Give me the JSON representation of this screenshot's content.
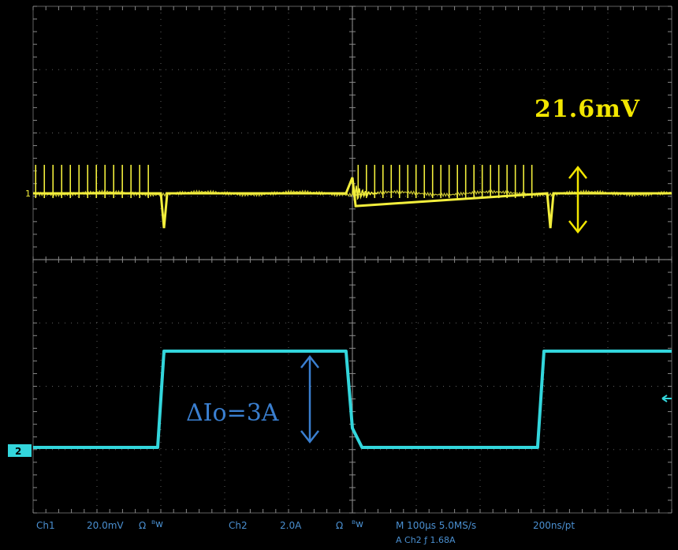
{
  "colors": {
    "background": "#000000",
    "ch1": "#f2ee3c",
    "ch2": "#33d6dc",
    "grid": "#8a8a8a",
    "annotation_voltage": "#f2e600",
    "annotation_current": "#3a7fd0",
    "status_text": "#4a8fd0"
  },
  "markers": {
    "ch1": "1",
    "ch2": "2"
  },
  "annotations": {
    "ripple": "21.6mV",
    "step": "ΔIo=3A"
  },
  "status_bar": {
    "ch1_label": "Ch1",
    "ch1_scale": "20.0mV",
    "ch1_coupling": "Ω",
    "ch1_bw": "ᴮw",
    "ch2_label": "Ch2",
    "ch2_scale": "2.0A",
    "ch2_coupling": "Ω",
    "ch2_bw": "ᴮw",
    "timebase": "M 100µs 5.0MS/s",
    "resolution": "200ns/pt",
    "trigger": "A Ch2 ƒ 1.68A"
  },
  "chart_data": {
    "type": "line",
    "time_div": "100µs",
    "divisions_x": 10,
    "divisions_y": 8,
    "series": [
      {
        "name": "Ch1",
        "unit": "mV",
        "scale_per_div": 20.0,
        "x_us": [
          0,
          200,
          205,
          210,
          490,
          500,
          505,
          805,
          810,
          815,
          1000
        ],
        "y_mV": [
          0,
          0,
          -11,
          0,
          0,
          5,
          -4,
          0,
          -11,
          0,
          0
        ],
        "switching_spikes": [
          {
            "x_us_start": 0,
            "x_us_end": 190,
            "count": 14,
            "peak_mV": 9
          },
          {
            "x_us_start": 505,
            "x_us_end": 790,
            "count": 22,
            "peak_mV": 9
          }
        ]
      },
      {
        "name": "Ch2",
        "unit": "A",
        "scale_per_div": 2.0,
        "x_us": [
          0,
          195,
          205,
          490,
          500,
          515,
          790,
          800,
          1000
        ],
        "y_A": [
          0,
          0,
          3,
          3,
          0.6,
          0,
          0,
          3,
          3
        ]
      }
    ],
    "ripple_mV": 21.6,
    "step_A": 3
  }
}
